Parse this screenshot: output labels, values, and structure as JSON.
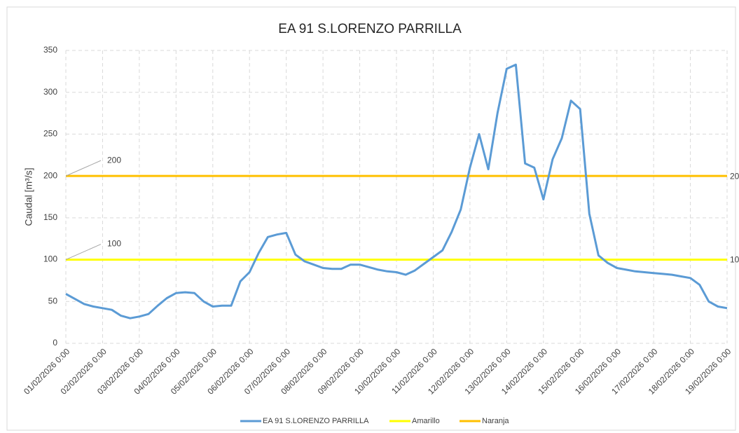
{
  "chart_data": {
    "type": "line",
    "title": "EA 91 S.LORENZO PARRILLA",
    "y_label": "Caudal [m³/s]",
    "categories": [
      "01/02/2026 0:00",
      null,
      null,
      null,
      "02/02/2026 0:00",
      null,
      null,
      null,
      "03/02/2026 0:00",
      null,
      null,
      null,
      "04/02/2026 0:00",
      null,
      null,
      null,
      "05/02/2026 0:00",
      null,
      null,
      null,
      "06/02/2026 0:00",
      null,
      null,
      null,
      "07/02/2026 0:00",
      null,
      null,
      null,
      "08/02/2026 0:00",
      null,
      null,
      null,
      "09/02/2026 0:00",
      null,
      null,
      null,
      "10/02/2026 0:00",
      null,
      null,
      null,
      "11/02/2026 0:00",
      null,
      null,
      null,
      "12/02/2026 0:00",
      null,
      null,
      null,
      "13/02/2026 0:00",
      null,
      null,
      null,
      "14/02/2026 0:00",
      null,
      null,
      null,
      "15/02/2026 0:00",
      null,
      null,
      null,
      "16/02/2026 0:00",
      null,
      null,
      null,
      "17/02/2026 0:00",
      null,
      null,
      null,
      "18/02/2026 0:00",
      null,
      null,
      null,
      "19/02/2026 0:00"
    ],
    "series": [
      {
        "name": "EA 91 S.LORENZO PARRILLA",
        "color": "#5b9bd5",
        "values": [
          59,
          53,
          47,
          44,
          42,
          40,
          33,
          30,
          32,
          35,
          45,
          54,
          60,
          61,
          60,
          50,
          44,
          45,
          45,
          74,
          85,
          108,
          127,
          130,
          132,
          106,
          98,
          94,
          90,
          89,
          89,
          94,
          94,
          91,
          88,
          86,
          85,
          82,
          87,
          95,
          103,
          111,
          133,
          160,
          210,
          250,
          208,
          275,
          328,
          333,
          215,
          210,
          172,
          220,
          245,
          290,
          280,
          155,
          105,
          96,
          90,
          88,
          86,
          85,
          84,
          83,
          82,
          80,
          78,
          70,
          50,
          44,
          42
        ]
      }
    ],
    "reference_lines": [
      {
        "name": "Amarillo",
        "color": "#ffff00",
        "value": 100
      },
      {
        "name": "Naranja",
        "color": "#ffc000",
        "value": 200
      }
    ],
    "ylim": [
      0,
      350
    ],
    "yticks": [
      0,
      50,
      100,
      150,
      200,
      250,
      300,
      350
    ],
    "grid": true
  }
}
